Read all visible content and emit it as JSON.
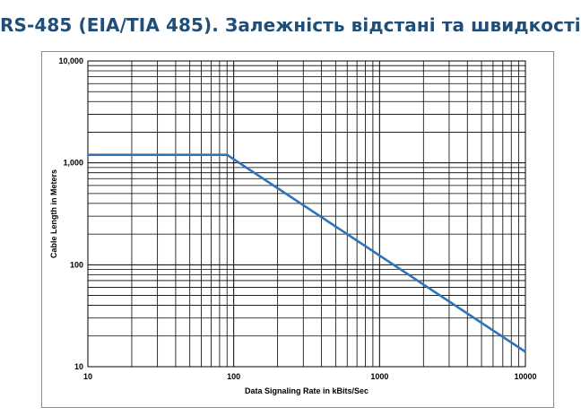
{
  "slide": {
    "title": "RS-485 (EIA/TIA 485). Залежність відстані та швидкості"
  },
  "colors": {
    "title": "#1f4e79",
    "series_line": "#2e75b6",
    "grid": "#000000"
  },
  "chart_data": {
    "type": "line",
    "x_scale": "log",
    "y_scale": "log",
    "xlim": [
      10,
      10000
    ],
    "ylim": [
      10,
      10000
    ],
    "grid": true,
    "xlabel": "Data Signaling Rate in kBits/Sec",
    "ylabel": "Cable Length in Meters",
    "x_ticks": [
      {
        "value": 10,
        "label": "10"
      },
      {
        "value": 100,
        "label": "100"
      },
      {
        "value": 1000,
        "label": "1000"
      },
      {
        "value": 10000,
        "label": "10000"
      }
    ],
    "y_ticks": [
      {
        "value": 10,
        "label": "10"
      },
      {
        "value": 100,
        "label": "100"
      },
      {
        "value": 1000,
        "label": "1,000"
      },
      {
        "value": 10000,
        "label": "10,000"
      }
    ],
    "series": [
      {
        "x": [
          10,
          90,
          10000
        ],
        "y": [
          1200,
          1200,
          14
        ]
      }
    ]
  }
}
